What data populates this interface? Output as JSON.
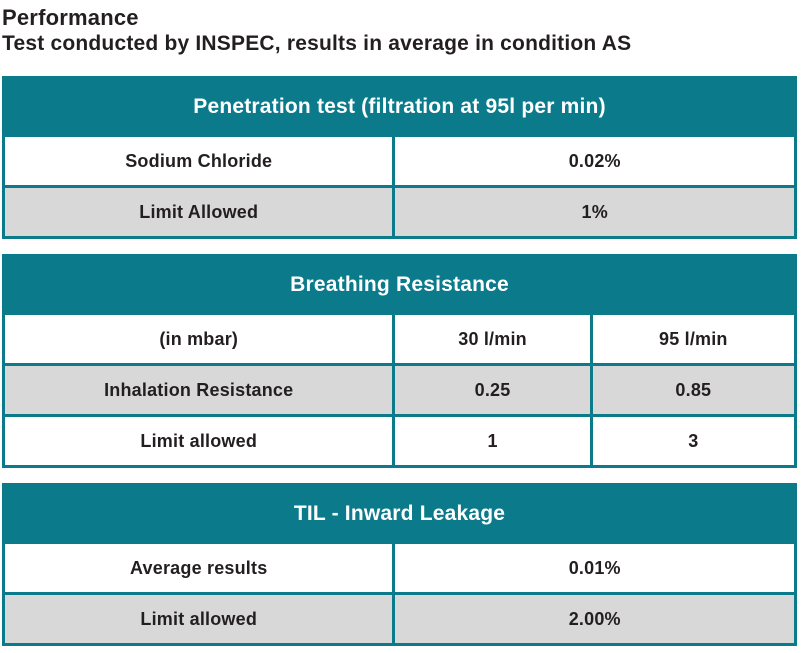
{
  "page": {
    "title": "Performance",
    "subtitle": "Test conducted by INSPEC, results in average in condition AS"
  },
  "colors": {
    "accent_teal": "#0b7b8c",
    "shaded_row_gray": "#d8d8d8",
    "body_text": "#231f20",
    "header_text": "#ffffff"
  },
  "tables": [
    {
      "id": "penetration-test",
      "title": "Penetration test (filtration at 95l per min)",
      "rows": [
        {
          "cells": [
            "Sodium Chloride",
            "0.02%"
          ]
        },
        {
          "cells": [
            "Limit Allowed",
            "1%"
          ]
        }
      ]
    },
    {
      "id": "breathing-resistance",
      "title": "Breathing Resistance",
      "rows": [
        {
          "cells": [
            "(in mbar)",
            "30 l/min",
            "95 l/min"
          ]
        },
        {
          "cells": [
            "Inhalation Resistance",
            "0.25",
            "0.85"
          ]
        },
        {
          "cells": [
            "Limit allowed",
            "1",
            "3"
          ]
        }
      ]
    },
    {
      "id": "til-inward-leakage",
      "title": "TIL - Inward Leakage",
      "rows": [
        {
          "cells": [
            "Average results",
            "0.01%"
          ]
        },
        {
          "cells": [
            "Limit allowed",
            "2.00%"
          ]
        }
      ]
    }
  ]
}
